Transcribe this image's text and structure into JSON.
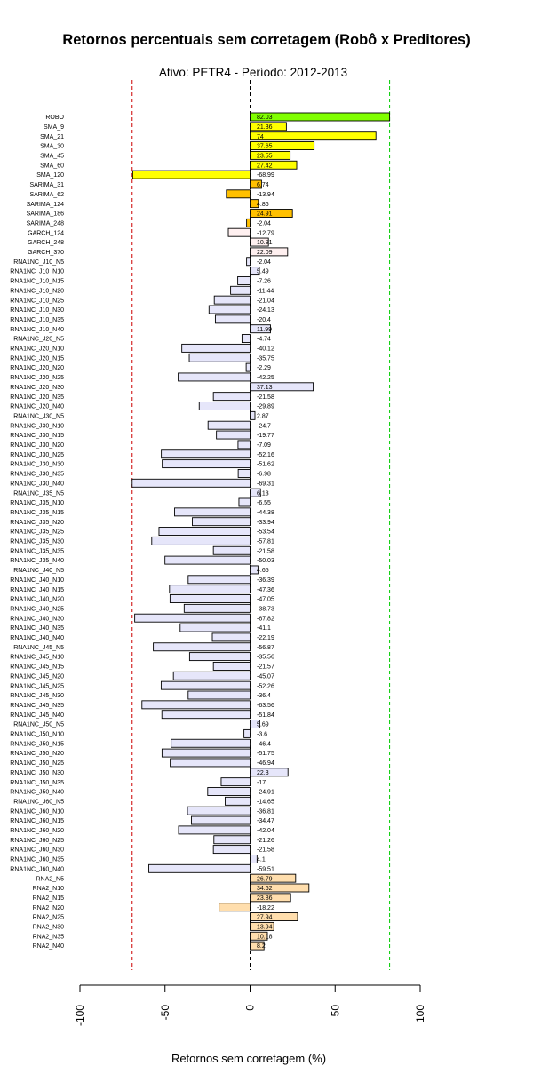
{
  "chart_data": {
    "type": "bar",
    "orientation": "horizontal",
    "title": "Retornos percentuais sem corretagem (Robô x Preditores)",
    "subtitle": "Ativo:  PETR4  - Período: 2012-2013",
    "xlabel": "Retornos sem corretagem (%)",
    "ylabel": "",
    "xlim": [
      -100,
      100
    ],
    "xticks": [
      -100,
      -50,
      0,
      50,
      100
    ],
    "xtick_labels": [
      "-100",
      "-50",
      "0",
      "50",
      "100"
    ],
    "reference_lines": [
      {
        "value": 0,
        "color": "#000000",
        "style": "dashed"
      },
      {
        "value": -69.31,
        "color": "#cc0000",
        "style": "dashed"
      },
      {
        "value": 82.03,
        "color": "#00cc00",
        "style": "dashed"
      }
    ],
    "categories": [
      "ROBO",
      "SMA_9",
      "SMA_21",
      "SMA_30",
      "SMA_45",
      "SMA_60",
      "SMA_120",
      "SARIMA_31",
      "SARIMA_62",
      "SARIMA_124",
      "SARIMA_186",
      "SARIMA_248",
      "GARCH_124",
      "GARCH_248",
      "GARCH_370",
      "RNA1NC_J10_N5",
      "RNA1NC_J10_N10",
      "RNA1NC_J10_N15",
      "RNA1NC_J10_N20",
      "RNA1NC_J10_N25",
      "RNA1NC_J10_N30",
      "RNA1NC_J10_N35",
      "RNA1NC_J10_N40",
      "RNA1NC_J20_N5",
      "RNA1NC_J20_N10",
      "RNA1NC_J20_N15",
      "RNA1NC_J20_N20",
      "RNA1NC_J20_N25",
      "RNA1NC_J20_N30",
      "RNA1NC_J20_N35",
      "RNA1NC_J20_N40",
      "RNA1NC_J30_N5",
      "RNA1NC_J30_N10",
      "RNA1NC_J30_N15",
      "RNA1NC_J30_N20",
      "RNA1NC_J30_N25",
      "RNA1NC_J30_N30",
      "RNA1NC_J30_N35",
      "RNA1NC_J30_N40",
      "RNA1NC_J35_N5",
      "RNA1NC_J35_N10",
      "RNA1NC_J35_N15",
      "RNA1NC_J35_N20",
      "RNA1NC_J35_N25",
      "RNA1NC_J35_N30",
      "RNA1NC_J35_N35",
      "RNA1NC_J35_N40",
      "RNA1NC_J40_N5",
      "RNA1NC_J40_N10",
      "RNA1NC_J40_N15",
      "RNA1NC_J40_N20",
      "RNA1NC_J40_N25",
      "RNA1NC_J40_N30",
      "RNA1NC_J40_N35",
      "RNA1NC_J40_N40",
      "RNA1NC_J45_N5",
      "RNA1NC_J45_N10",
      "RNA1NC_J45_N15",
      "RNA1NC_J45_N20",
      "RNA1NC_J45_N25",
      "RNA1NC_J45_N30",
      "RNA1NC_J45_N35",
      "RNA1NC_J45_N40",
      "RNA1NC_J50_N5",
      "RNA1NC_J50_N10",
      "RNA1NC_J50_N15",
      "RNA1NC_J50_N20",
      "RNA1NC_J50_N25",
      "RNA1NC_J50_N30",
      "RNA1NC_J50_N35",
      "RNA1NC_J50_N40",
      "RNA1NC_J60_N5",
      "RNA1NC_J60_N10",
      "RNA1NC_J60_N15",
      "RNA1NC_J60_N20",
      "RNA1NC_J60_N25",
      "RNA1NC_J60_N30",
      "RNA1NC_J60_N35",
      "RNA1NC_J60_N40",
      "RNA2_N5",
      "RNA2_N10",
      "RNA2_N15",
      "RNA2_N20",
      "RNA2_N25",
      "RNA2_N30",
      "RNA2_N35",
      "RNA2_N40"
    ],
    "values": [
      82.03,
      21.36,
      74,
      37.65,
      23.55,
      27.42,
      -68.99,
      6.74,
      -13.94,
      4.86,
      24.91,
      -2.04,
      -12.79,
      10.81,
      22.09,
      -2.04,
      5.49,
      -7.26,
      -11.44,
      -21.04,
      -24.13,
      -20.4,
      11.99,
      -4.74,
      -40.12,
      -35.75,
      -2.29,
      -42.25,
      37.13,
      -21.58,
      -29.89,
      2.87,
      -24.7,
      -19.77,
      -7.09,
      -52.16,
      -51.62,
      -6.98,
      -69.31,
      6.13,
      -6.55,
      -44.38,
      -33.94,
      -53.54,
      -57.81,
      -21.58,
      -50.03,
      4.65,
      -36.39,
      -47.36,
      -47.05,
      -38.73,
      -67.82,
      -41.1,
      -22.19,
      -56.87,
      -35.56,
      -21.57,
      -45.07,
      -52.26,
      -36.4,
      -63.56,
      -51.84,
      5.69,
      -3.6,
      -46.4,
      -51.75,
      -46.94,
      22.3,
      -17,
      -24.91,
      -14.65,
      -36.81,
      -34.47,
      -42.04,
      -21.26,
      -21.58,
      4.1,
      -59.51,
      26.79,
      34.62,
      23.86,
      -18.22,
      27.94,
      13.94,
      10.18,
      8.2
    ],
    "value_labels": [
      "82.03",
      "21.36",
      "74",
      "37.65",
      "23.55",
      "27.42",
      "-68.99",
      "6.74",
      "-13.94",
      "4.86",
      "24.91",
      "-2.04",
      "-12.79",
      "10.81",
      "22.09",
      "-2.04",
      "5.49",
      "-7.26",
      "-11.44",
      "-21.04",
      "-24.13",
      "-20.4",
      "11.99",
      "-4.74",
      "-40.12",
      "-35.75",
      "-2.29",
      "-42.25",
      "37.13",
      "-21.58",
      "-29.89",
      "2.87",
      "-24.7",
      "-19.77",
      "-7.09",
      "-52.16",
      "-51.62",
      "-6.98",
      "-69.31",
      "6.13",
      "-6.55",
      "-44.38",
      "-33.94",
      "-53.54",
      "-57.81",
      "-21.58",
      "-50.03",
      "4.65",
      "-36.39",
      "-47.36",
      "-47.05",
      "-38.73",
      "-67.82",
      "-41.1",
      "-22.19",
      "-56.87",
      "-35.56",
      "-21.57",
      "-45.07",
      "-52.26",
      "-36.4",
      "-63.56",
      "-51.84",
      "5.69",
      "-3.6",
      "-46.4",
      "-51.75",
      "-46.94",
      "22.3",
      "-17",
      "-24.91",
      "-14.65",
      "-36.81",
      "-34.47",
      "-42.04",
      "-21.26",
      "-21.58",
      "4.1",
      "-59.51",
      "26.79",
      "34.62",
      "23.86",
      "-18.22",
      "27.94",
      "13.94",
      "10.18",
      "8.2"
    ],
    "group_colors": {
      "robo": "#80ff00",
      "technical": "#ffff00",
      "stat": "#ffc000",
      "garch": "#fff0f0",
      "rna1nc": "#e6e6fa",
      "rna2": "#ffdead"
    },
    "bar_groups": [
      "robo",
      "technical",
      "technical",
      "technical",
      "technical",
      "technical",
      "technical",
      "stat",
      "stat",
      "stat",
      "stat",
      "stat",
      "garch",
      "garch",
      "garch",
      "rna1nc",
      "rna1nc",
      "rna1nc",
      "rna1nc",
      "rna1nc",
      "rna1nc",
      "rna1nc",
      "rna1nc",
      "rna1nc",
      "rna1nc",
      "rna1nc",
      "rna1nc",
      "rna1nc",
      "rna1nc",
      "rna1nc",
      "rna1nc",
      "rna1nc",
      "rna1nc",
      "rna1nc",
      "rna1nc",
      "rna1nc",
      "rna1nc",
      "rna1nc",
      "rna1nc",
      "rna1nc",
      "rna1nc",
      "rna1nc",
      "rna1nc",
      "rna1nc",
      "rna1nc",
      "rna1nc",
      "rna1nc",
      "rna1nc",
      "rna1nc",
      "rna1nc",
      "rna1nc",
      "rna1nc",
      "rna1nc",
      "rna1nc",
      "rna1nc",
      "rna1nc",
      "rna1nc",
      "rna1nc",
      "rna1nc",
      "rna1nc",
      "rna1nc",
      "rna1nc",
      "rna1nc",
      "rna1nc",
      "rna1nc",
      "rna1nc",
      "rna1nc",
      "rna1nc",
      "rna1nc",
      "rna1nc",
      "rna1nc",
      "rna1nc",
      "rna1nc",
      "rna1nc",
      "rna1nc",
      "rna1nc",
      "rna1nc",
      "rna1nc",
      "rna1nc",
      "rna2",
      "rna2",
      "rna2",
      "rna2",
      "rna2",
      "rna2",
      "rna2",
      "rna2"
    ]
  }
}
